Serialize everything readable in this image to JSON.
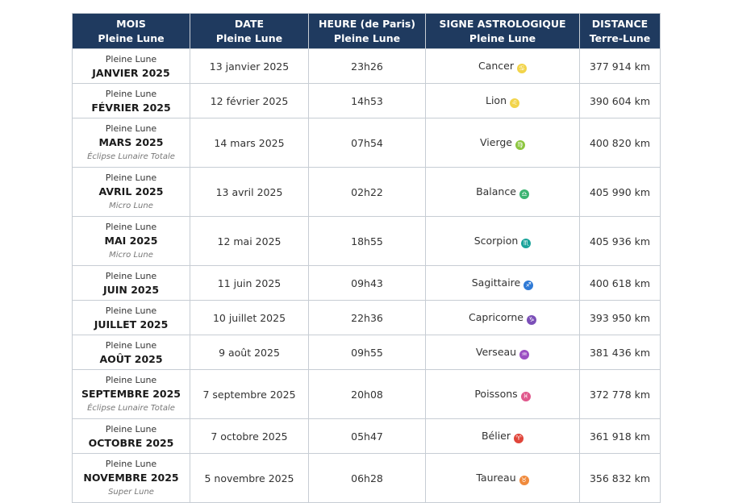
{
  "headers": [
    {
      "line1": "MOIS",
      "line2": "Pleine Lune"
    },
    {
      "line1": "DATE",
      "line2": "Pleine Lune"
    },
    {
      "line1": "HEURE (de Paris)",
      "line2": "Pleine Lune"
    },
    {
      "line1": "SIGNE ASTROLOGIQUE",
      "line2": "Pleine Lune"
    },
    {
      "line1": "DISTANCE",
      "line2": "Terre-Lune"
    }
  ],
  "rows": [
    {
      "top": "Pleine Lune",
      "month": "JANVIER 2025",
      "note": "",
      "date": "13 janvier 2025",
      "time": "23h26",
      "sign": "Cancer",
      "glyph": "♋",
      "glyph_color": "#f2d44a",
      "distance": "377 914 km"
    },
    {
      "top": "Pleine Lune",
      "month": "FÉVRIER 2025",
      "note": "",
      "date": "12 février 2025",
      "time": "14h53",
      "sign": "Lion",
      "glyph": "♌",
      "glyph_color": "#f2d44a",
      "distance": "390 604 km"
    },
    {
      "top": "Pleine Lune",
      "month": "MARS 2025",
      "note": "Éclipse Lunaire Totale",
      "date": "14 mars 2025",
      "time": "07h54",
      "sign": "Vierge",
      "glyph": "♍",
      "glyph_color": "#8cc63f",
      "distance": "400 820 km"
    },
    {
      "top": "Pleine Lune",
      "month": "AVRIL 2025",
      "note": "Micro Lune",
      "date": "13 avril 2025",
      "time": "02h22",
      "sign": "Balance",
      "glyph": "♎",
      "glyph_color": "#3cb371",
      "distance": "405 990 km"
    },
    {
      "top": "Pleine Lune",
      "month": "MAI 2025",
      "note": "Micro Lune",
      "date": "12 mai 2025",
      "time": "18h55",
      "sign": "Scorpion",
      "glyph": "♏",
      "glyph_color": "#1aa39a",
      "distance": "405 936 km"
    },
    {
      "top": "Pleine Lune",
      "month": "JUIN 2025",
      "note": "",
      "date": "11 juin 2025",
      "time": "09h43",
      "sign": "Sagittaire",
      "glyph": "♐",
      "glyph_color": "#2f7ad6",
      "distance": "400 618 km"
    },
    {
      "top": "Pleine Lune",
      "month": "JUILLET 2025",
      "note": "",
      "date": "10 juillet 2025",
      "time": "22h36",
      "sign": "Capricorne",
      "glyph": "♑",
      "glyph_color": "#7b4fb8",
      "distance": "393 950 km"
    },
    {
      "top": "Pleine Lune",
      "month": "AOÛT 2025",
      "note": "",
      "date": "9 août 2025",
      "time": "09h55",
      "sign": "Verseau",
      "glyph": "♒",
      "glyph_color": "#9b4fc2",
      "distance": "381 436 km"
    },
    {
      "top": "Pleine Lune",
      "month": "SEPTEMBRE 2025",
      "note": "Éclipse Lunaire Totale",
      "date": "7 septembre 2025",
      "time": "20h08",
      "sign": "Poissons",
      "glyph": "♓",
      "glyph_color": "#e0588c",
      "distance": "372 778 km"
    },
    {
      "top": "Pleine Lune",
      "month": "OCTOBRE 2025",
      "note": "",
      "date": "7 octobre 2025",
      "time": "05h47",
      "sign": "Bélier",
      "glyph": "♈",
      "glyph_color": "#e0453a",
      "distance": "361 918 km"
    },
    {
      "top": "Pleine Lune",
      "month": "NOVEMBRE 2025",
      "note": "Super Lune",
      "date": "5 novembre 2025",
      "time": "06h28",
      "sign": "Taureau",
      "glyph": "♉",
      "glyph_color": "#f08a3c",
      "distance": "356 832 km"
    }
  ]
}
